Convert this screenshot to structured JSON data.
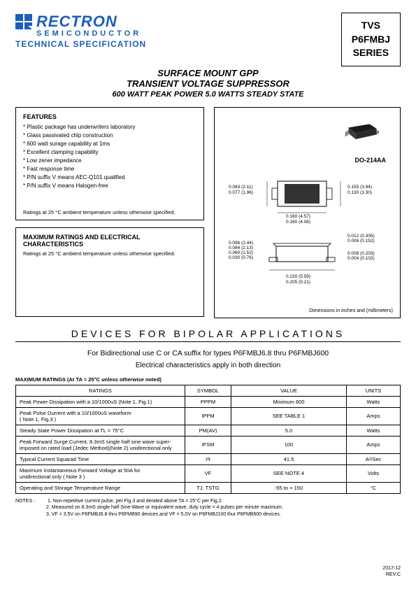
{
  "logo": {
    "name": "RECTRON",
    "sub": "SEMICONDUCTOR",
    "tech": "TECHNICAL SPECIFICATION"
  },
  "series_box": {
    "l1": "TVS",
    "l2": "P6FMBJ",
    "l3": "SERIES"
  },
  "title": {
    "l1": "SURFACE MOUNT GPP",
    "l2": "TRANSIENT VOLTAGE SUPPRESSOR",
    "l3": "600 WATT PEAK POWER   5.0 WATTS STEADY STATE"
  },
  "features": {
    "title": "FEATURES",
    "items": [
      "* Plastic package has underwriters laboratory",
      "* Glass passivated chip construction",
      "* 600 watt surage capability at 1ms",
      "* Excellent clamping capability",
      "* Low zener impedance",
      "* Fast response time",
      "* P/N suffix V means AEC-Q101 qualified",
      "* P/N suffix V means Halogen-free"
    ],
    "note": "Ratings at 25 °C ambient temperature unless otherwise specified."
  },
  "maxbox": {
    "title": "MAXIMUM RATINGS AND ELECTRICAL CHARACTERISTICS",
    "note": "Ratings at 25 °C ambient temperature unless otherwise specified."
  },
  "package": {
    "label": "DO-214AA",
    "dim_note": "Dimensions in inches and (millimeters)",
    "top_dims": {
      "left1": "0.083 (2.11)",
      "left2": "0.077 (1.96)",
      "right1": "0.155 (3.94)",
      "right2": "0.130 (3.30)",
      "bot1": "0.180 (4.57)",
      "bot2": "0.160 (4.06)"
    },
    "side_dims": {
      "l1": "0.096 (2.44)",
      "l2": "0.084 (2.13)",
      "l3": "0.060 (1.52)",
      "l4": "0.030 (0.76)",
      "r1": "0.012 (0.305)",
      "r2": "0.006 (0.152)",
      "r3": "0.008 (0.203)",
      "r4": "0.004 (0.102)",
      "b1": "0.220 (5.59)",
      "b2": "0.205 (5.21)"
    }
  },
  "section_title": "DEVICES   FOR   BIPOLAR   APPLICATIONS",
  "bidir_note": "For Bidirectional use C or CA suffix for types P6FMBJ6.8 thru P6FMBJ600",
  "elec_note": "Electrical characteristics apply in both direction",
  "table": {
    "title": "MAXIMUM RATINGS (At TA = 25°C unless otherwise noted)",
    "headers": [
      "RATINGS",
      "SYMBOL",
      "VALUE",
      "UNITS"
    ],
    "rows": [
      [
        "Peak Power Dissipation with a 10/1000uS (Note 1, Fig.1)",
        "PPPM",
        "Minimum 600",
        "Watts"
      ],
      [
        "Peak Pulse Durrent with a 10/1000uS waveform\n( Note 1, Fig.3 )",
        "IPPM",
        "SEE TABLE 1",
        "Amps"
      ],
      [
        "Steady State Power Dissipation at TL = 75°C",
        "PM(AV)",
        "5.0",
        "Watts"
      ],
      [
        "Peak Forward Surge Current, 8.3mS single half sine wave super-\nimposed on rated load (Jedec Method)(Note 2) unidirectional only",
        "IFSM",
        "100",
        "Amps"
      ],
      [
        "Typical Current Squarad Time",
        "I²t",
        "41.5",
        "A²/Sec"
      ],
      [
        "Maximum Instantaneous Forward Voltage at 50A for\nunidirectional only ( Note 3 )",
        "VF",
        "SEE NOTE 4",
        "Volts"
      ],
      [
        "Operating and Storage Temperature Range",
        "TJ, TSTG",
        "-55 to + 150",
        "°C"
      ]
    ]
  },
  "notes": {
    "label": "NOTES :",
    "items": [
      "1. Non-repetitive current pulse, per Fig.3 and derated above TA = 25°C per Fig.2.",
      "2. Measured on 8.3mS single half Sine-Wave or equivalent wave, duty cycle = 4 pulses per minute maximum.",
      "3. VF = 3.5V on P6FMBJ6.8 thru P6FMB90 devices and VF = 5.0V on P6FMBJ100 thur P6FMB600 devices."
    ]
  },
  "footer": {
    "date": "2017-12",
    "rev": "REV:C"
  },
  "colors": {
    "brand": "#1b5fb8",
    "text": "#000000",
    "bg": "#ffffff"
  }
}
